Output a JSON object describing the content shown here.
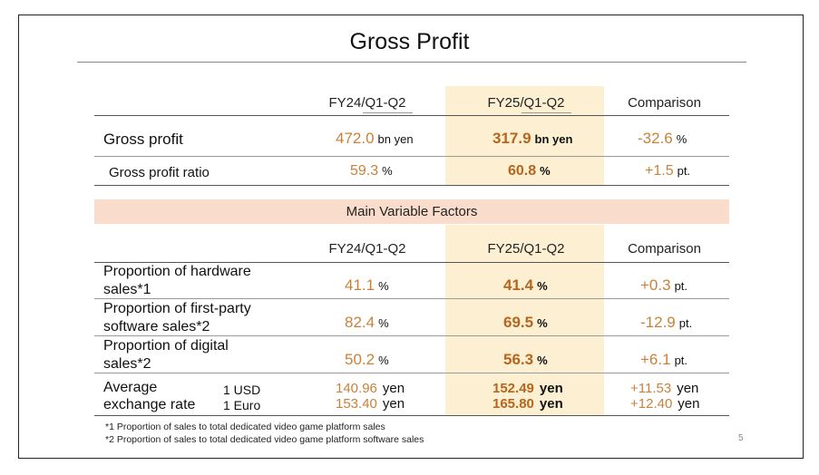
{
  "title": "Gross Profit",
  "columns": {
    "fy24": "FY24/Q1-Q2",
    "fy25": "FY25/Q1-Q2",
    "comparison": "Comparison"
  },
  "gross": [
    {
      "label": "Gross profit",
      "fy24": "472.0",
      "fy24_unit": "bn yen",
      "fy25": "317.9",
      "fy25_unit": "bn yen",
      "cmp": "-32.6",
      "cmp_unit": "%"
    },
    {
      "label": "Gross profit ratio",
      "fy24": "59.3",
      "fy24_unit": "%",
      "fy25": "60.8",
      "fy25_unit": "%",
      "cmp": "+1.5",
      "cmp_unit": "pt."
    }
  ],
  "factors_title": "Main Variable Factors",
  "factors": [
    {
      "label1": "Proportion of hardware",
      "label2": "sales*1",
      "fy24": "41.1",
      "fy24_unit": "%",
      "fy25": "41.4",
      "fy25_unit": "%",
      "cmp": "+0.3",
      "cmp_unit": "pt."
    },
    {
      "label1": "Proportion of first-party",
      "label2": "software sales*2",
      "fy24": "82.4",
      "fy24_unit": "%",
      "fy25": "69.5",
      "fy25_unit": "%",
      "cmp": "-12.9",
      "cmp_unit": "pt."
    },
    {
      "label1": "Proportion of digital",
      "label2": "sales*2",
      "fy24": "50.2",
      "fy24_unit": "%",
      "fy25": "56.3",
      "fy25_unit": "%",
      "cmp": "+6.1",
      "cmp_unit": "pt."
    }
  ],
  "exchange": {
    "label1": "Average",
    "label2": "exchange rate",
    "rows": [
      {
        "currency": "1 USD",
        "fy24": "140.96",
        "fy25": "152.49",
        "cmp": "+11.53",
        "unit": "yen"
      },
      {
        "currency": "1 Euro",
        "fy24": "153.40",
        "fy25": "165.80",
        "cmp": "+12.40",
        "unit": "yen"
      }
    ]
  },
  "notes": [
    "*1 Proportion of sales to total dedicated video game platform sales",
    "*2 Proportion of sales to total dedicated video game platform software sales"
  ],
  "page_number": "5",
  "colors": {
    "value": "#c8813a",
    "bold_value": "#b5651d",
    "highlight": "#fdf0d2",
    "banner": "#f9dccb"
  }
}
